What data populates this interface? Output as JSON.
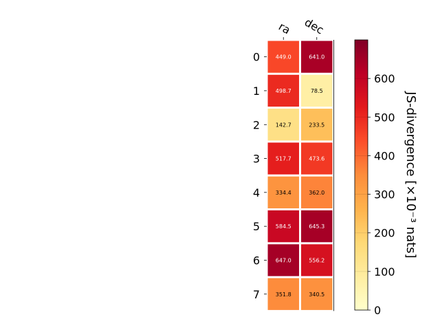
{
  "chart_data": {
    "type": "heatmap",
    "columns": [
      "ra",
      "dec"
    ],
    "rows": [
      "0",
      "1",
      "2",
      "3",
      "4",
      "5",
      "6",
      "7"
    ],
    "values": [
      [
        449.0,
        641.0
      ],
      [
        498.7,
        78.5
      ],
      [
        142.7,
        233.5
      ],
      [
        517.7,
        473.6
      ],
      [
        334.4,
        362.0
      ],
      [
        584.5,
        645.3
      ],
      [
        647.0,
        556.2
      ],
      [
        351.8,
        340.5
      ]
    ],
    "value_labels": [
      [
        "449.0",
        "641.0"
      ],
      [
        "498.7",
        "78.5"
      ],
      [
        "142.7",
        "233.5"
      ],
      [
        "517.7",
        "473.6"
      ],
      [
        "334.4",
        "362.0"
      ],
      [
        "584.5",
        "645.3"
      ],
      [
        "647.0",
        "556.2"
      ],
      [
        "351.8",
        "340.5"
      ]
    ],
    "colormap": "YlOrRd",
    "colorbar": {
      "label": "JS-divergence [×10⁻³ nats]",
      "range": [
        0,
        700
      ],
      "ticks": [
        0,
        100,
        200,
        300,
        400,
        500,
        600
      ],
      "tick_labels": [
        "0",
        "100",
        "200",
        "300",
        "400",
        "500",
        "600"
      ]
    },
    "grid": false
  }
}
